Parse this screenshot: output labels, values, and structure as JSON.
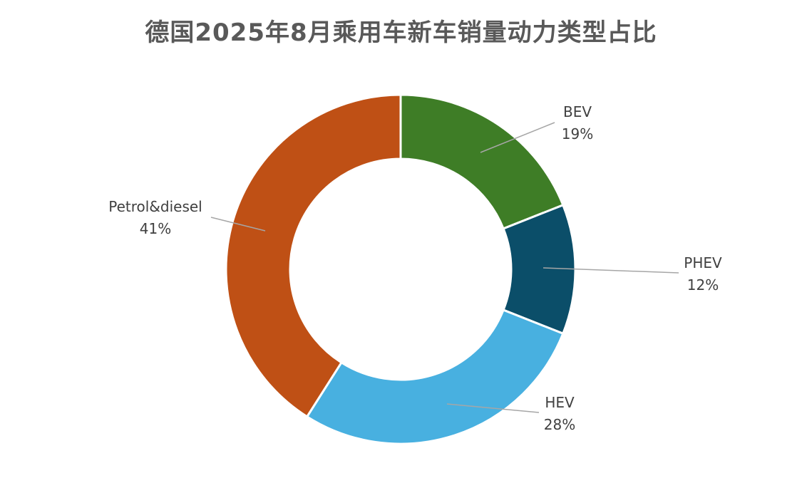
{
  "chart_data": {
    "type": "pie",
    "subtype": "doughnut",
    "title": "德国2025年8月乘用车新车销量动力类型占比",
    "legend": "none",
    "categories": [
      "BEV",
      "PHEV",
      "HEV",
      "Petrol&diesel"
    ],
    "values": [
      19,
      12,
      28,
      41
    ],
    "value_labels": [
      "19%",
      "12%",
      "28%",
      "41%"
    ],
    "colors": [
      "#3e7d26",
      "#0b4e69",
      "#48b0e0",
      "#bf5015"
    ],
    "label_color": "#404040",
    "leader_line_color": "#a6a6a6",
    "title_color": "#595959"
  }
}
